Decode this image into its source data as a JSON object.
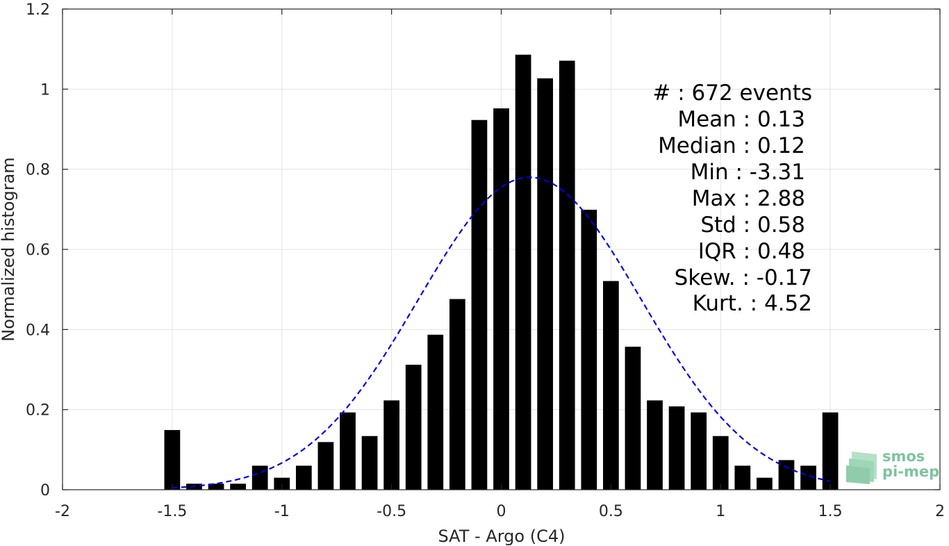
{
  "chart_data": {
    "type": "bar",
    "xlabel": "SAT - Argo (C4)",
    "ylabel": "Normalized histogram",
    "xlim": [
      -2,
      2
    ],
    "ylim": [
      0,
      1.2
    ],
    "xticks": [
      "-2",
      "-1.5",
      "-1",
      "-0.5",
      "0",
      "0.5",
      "1",
      "1.5",
      "2"
    ],
    "yticks": [
      "0",
      "0.2",
      "0.4",
      "0.6",
      "0.8",
      "1",
      "1.2"
    ],
    "grid": true,
    "bar_color": "#000000",
    "bin_width": 0.1,
    "bins": [
      {
        "x": -1.5,
        "y": 0.149
      },
      {
        "x": -1.4,
        "y": 0.015
      },
      {
        "x": -1.3,
        "y": 0.015
      },
      {
        "x": -1.2,
        "y": 0.015
      },
      {
        "x": -1.1,
        "y": 0.06
      },
      {
        "x": -1.0,
        "y": 0.03
      },
      {
        "x": -0.9,
        "y": 0.06
      },
      {
        "x": -0.8,
        "y": 0.119
      },
      {
        "x": -0.7,
        "y": 0.193
      },
      {
        "x": -0.6,
        "y": 0.134
      },
      {
        "x": -0.5,
        "y": 0.223
      },
      {
        "x": -0.4,
        "y": 0.312
      },
      {
        "x": -0.3,
        "y": 0.387
      },
      {
        "x": -0.2,
        "y": 0.476
      },
      {
        "x": -0.1,
        "y": 0.923
      },
      {
        "x": 0.0,
        "y": 0.952
      },
      {
        "x": 0.1,
        "y": 1.086
      },
      {
        "x": 0.2,
        "y": 1.027
      },
      {
        "x": 0.3,
        "y": 1.071
      },
      {
        "x": 0.4,
        "y": 0.699
      },
      {
        "x": 0.5,
        "y": 0.521
      },
      {
        "x": 0.6,
        "y": 0.357
      },
      {
        "x": 0.7,
        "y": 0.223
      },
      {
        "x": 0.8,
        "y": 0.208
      },
      {
        "x": 0.9,
        "y": 0.193
      },
      {
        "x": 1.0,
        "y": 0.134
      },
      {
        "x": 1.1,
        "y": 0.06
      },
      {
        "x": 1.2,
        "y": 0.03
      },
      {
        "x": 1.3,
        "y": 0.074
      },
      {
        "x": 1.4,
        "y": 0.06
      },
      {
        "x": 1.5,
        "y": 0.193
      }
    ],
    "fit_curve": {
      "style": "dashed",
      "color": "#0000e6",
      "mean": 0.13,
      "std": 0.51,
      "peak": 0.78,
      "x_range": [
        -1.5,
        1.5
      ]
    }
  },
  "stats": [
    {
      "label": "#  : 672 events"
    },
    {
      "label": "Mean : 0.13"
    },
    {
      "label": "Median : 0.12"
    },
    {
      "label": "Min : -3.31"
    },
    {
      "label": "Max : 2.88"
    },
    {
      "label": "Std : 0.58"
    },
    {
      "label": "IQR : 0.48"
    },
    {
      "label": "Skew. : -0.17"
    },
    {
      "label": "Kurt. : 4.52"
    }
  ],
  "logo": {
    "line1": "smos",
    "line2": "pi-mep",
    "color": "#7dc49e"
  }
}
